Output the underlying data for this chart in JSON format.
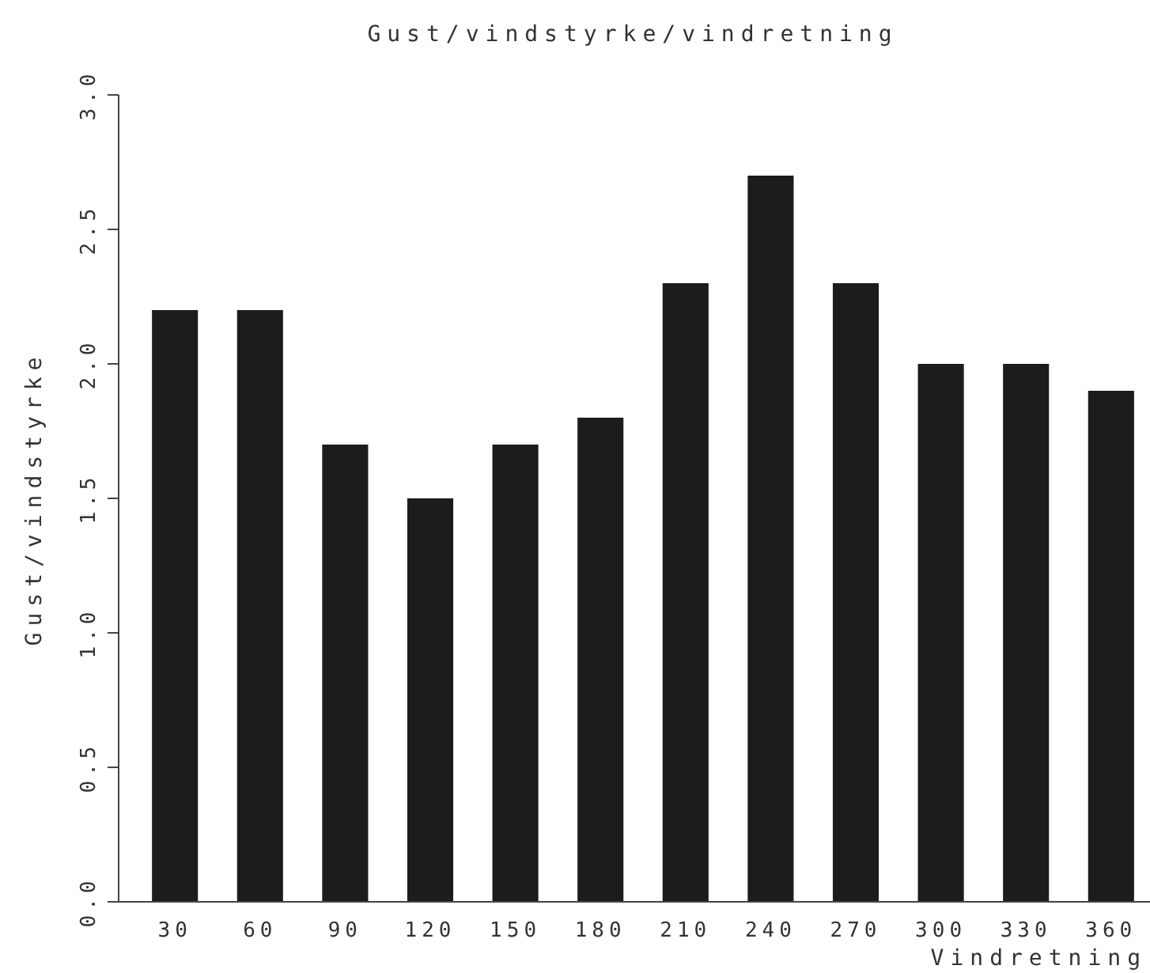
{
  "chart_data": {
    "type": "bar",
    "title": "Gust/vindstyrke/vindretning",
    "xlabel": "Vindretning",
    "ylabel": "Gust/vindstyrke",
    "categories": [
      "30",
      "60",
      "90",
      "120",
      "150",
      "180",
      "210",
      "240",
      "270",
      "300",
      "330",
      "360"
    ],
    "values": [
      2.2,
      2.2,
      1.7,
      1.5,
      1.7,
      1.8,
      2.3,
      2.7,
      2.3,
      2.0,
      2.0,
      1.9
    ],
    "color": "#1c1c1c",
    "ylim": [
      0,
      3
    ],
    "yticks": [
      {
        "value": 0,
        "label": "0.0"
      },
      {
        "value": 0.5,
        "label": "0.5"
      },
      {
        "value": 1,
        "label": "1.0"
      },
      {
        "value": 1.5,
        "label": "1.5"
      },
      {
        "value": 2,
        "label": "2.0"
      },
      {
        "value": 2.5,
        "label": "2.5"
      },
      {
        "value": 3,
        "label": "3.0"
      }
    ],
    "grid": false
  }
}
